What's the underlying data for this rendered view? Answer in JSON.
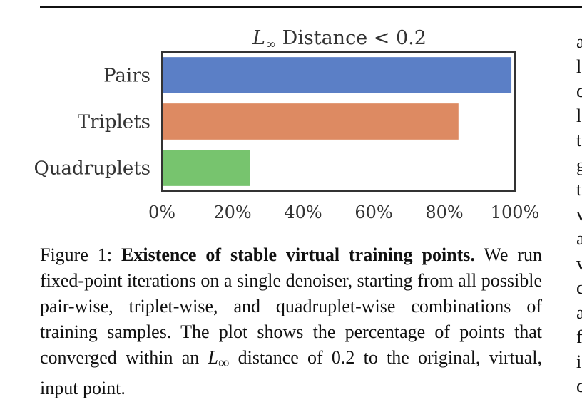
{
  "chart_data": {
    "type": "bar",
    "orientation": "horizontal",
    "title_prefix": "L",
    "title_sub": "∞",
    "title_rest": " Distance < 0.2",
    "categories": [
      "Pairs",
      "Triplets",
      "Quadruplets"
    ],
    "values": [
      99,
      84,
      25
    ],
    "xlim": [
      0,
      100
    ],
    "xticks": [
      "0%",
      "20%",
      "40%",
      "60%",
      "80%",
      "100%"
    ],
    "colors": [
      "#5b7fc6",
      "#dd8a62",
      "#77c46e"
    ],
    "grid": false,
    "legend": "none"
  },
  "caption": {
    "label": "Figure 1: ",
    "bold": "Existence of stable virtual training points.",
    "text_before_math": " We run fixed-point iterations on a single denoiser, starting from all possible pair-wise, triplet-wise, and quadruplet-wise combinations of training samples. The plot shows the percentage of points that converged within an ",
    "math_base": "L",
    "math_sub": "∞",
    "text_after_math": " distance of 0.2 to the original, virtual, input point."
  },
  "right_column_fragments": [
    "a",
    "l",
    "c",
    "l",
    "t",
    "g",
    "t",
    "v",
    "a",
    "v",
    "c",
    "a",
    "f",
    "i",
    "c"
  ]
}
